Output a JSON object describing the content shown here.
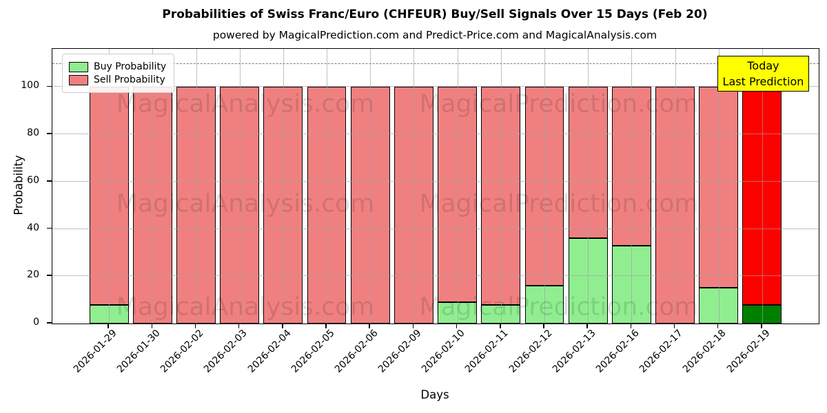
{
  "title": "Probabilities of Swiss Franc/Euro (CHFEUR) Buy/Sell Signals Over 15 Days (Feb 20)",
  "subtitle": "powered by MagicalPrediction.com and Predict-Price.com and MagicalAnalysis.com",
  "legend": {
    "items": [
      {
        "label": "Buy Probability",
        "color": "#90EE90"
      },
      {
        "label": "Sell Probability",
        "color": "#F08080"
      }
    ]
  },
  "annotation": {
    "line1": "Today",
    "line2": "Last Prediction",
    "bg_color": "#FFFF00"
  },
  "watermarks": {
    "left_text": "MagicalAnalysis.com",
    "right_text": "MagicalPrediction.com"
  },
  "axes": {
    "ylabel": "Probability",
    "xlabel": "Days",
    "yticks": [
      0,
      20,
      40,
      60,
      80,
      100
    ],
    "dashed_line_y": 110
  },
  "chart_data": {
    "type": "bar",
    "stacked": true,
    "title": "Probabilities of Swiss Franc/Euro (CHFEUR) Buy/Sell Signals Over 15 Days (Feb 20)",
    "xlabel": "Days",
    "ylabel": "Probability",
    "ylim": [
      0,
      116
    ],
    "grid": true,
    "legend_position": "upper left",
    "categories": [
      "2026-01-29",
      "2026-01-30",
      "2026-02-02",
      "2026-02-03",
      "2026-02-04",
      "2026-02-05",
      "2026-02-06",
      "2026-02-09",
      "2026-02-10",
      "2026-02-11",
      "2026-02-12",
      "2026-02-13",
      "2026-02-16",
      "2026-02-17",
      "2026-02-18",
      "2026-02-19"
    ],
    "series": [
      {
        "name": "Buy Probability",
        "color": "#90EE90",
        "today_color": "#008000",
        "values": [
          8,
          0,
          0,
          0,
          0,
          0,
          0,
          0,
          9,
          8,
          16,
          36,
          33,
          0,
          15,
          8
        ]
      },
      {
        "name": "Sell Probability",
        "color": "#F08080",
        "today_color": "#FF0000",
        "values": [
          92,
          100,
          100,
          100,
          100,
          100,
          100,
          100,
          91,
          92,
          84,
          64,
          67,
          100,
          85,
          92
        ]
      }
    ],
    "today_index": 15,
    "threshold_dashed_line": 110
  }
}
